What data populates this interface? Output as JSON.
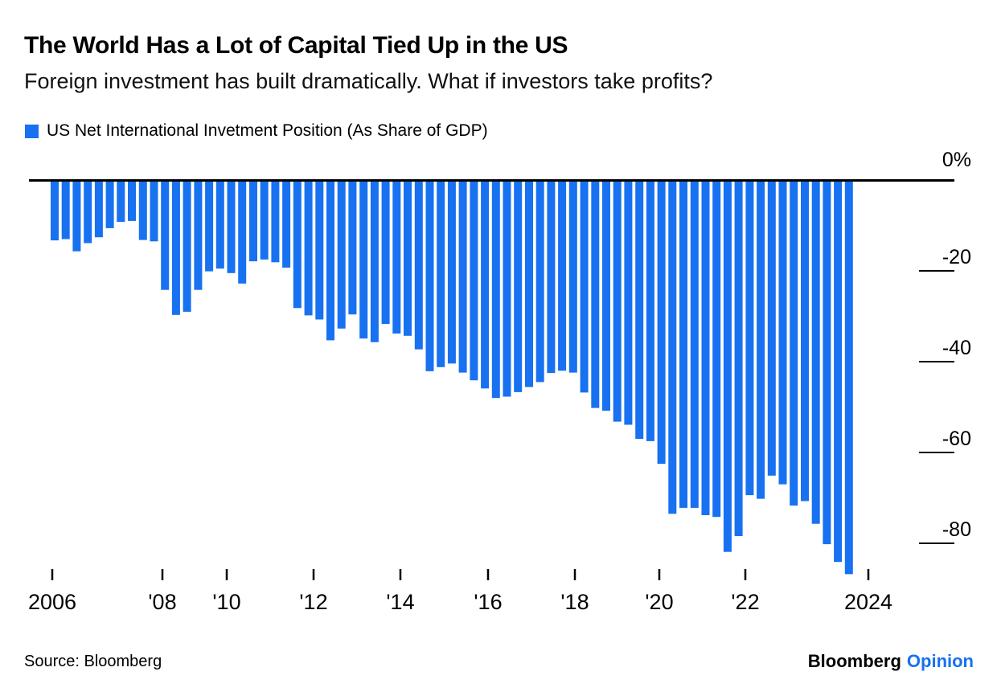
{
  "header": {
    "title": "The World Has a Lot of Capital Tied Up in the US",
    "subtitle": "Foreign investment has built dramatically. What if investors take profits?"
  },
  "legend": {
    "label": "US Net International Invetment Position (As Share of GDP)"
  },
  "colors": {
    "bar_blue": "#1771F1",
    "axis_black": "#000000",
    "brand_opinion_blue": "#1771F1"
  },
  "chart_data": {
    "type": "bar",
    "title": "US Net International Invetment Position (As Share of GDP)",
    "unit": "percent of GDP",
    "x_start": "2006 Q1",
    "x_end": "2024 Q1",
    "frequency": "quarterly",
    "points": 73,
    "values": [
      -13.3,
      -13.0,
      -15.7,
      -13.9,
      -12.6,
      -10.6,
      -9.2,
      -9.0,
      -13.2,
      -13.5,
      -24.2,
      -29.7,
      -29.0,
      -24.2,
      -20.1,
      -19.5,
      -20.5,
      -22.8,
      -17.9,
      -17.5,
      -18.1,
      -19.3,
      -28.2,
      -29.8,
      -30.7,
      -35.3,
      -32.7,
      -29.6,
      -34.9,
      -35.7,
      -31.7,
      -33.8,
      -34.3,
      -37.3,
      -42.1,
      -41.2,
      -40.4,
      -42.4,
      -44.1,
      -45.9,
      -48.0,
      -47.7,
      -46.7,
      -45.6,
      -44.5,
      -42.5,
      -42.0,
      -42.4,
      -46.8,
      -50.2,
      -50.8,
      -53.2,
      -53.9,
      -57.0,
      -57.5,
      -62.5,
      -73.5,
      -72.2,
      -72.2,
      -73.8,
      -74.2,
      -81.9,
      -78.4,
      -69.4,
      -70.2,
      -65.1,
      -67.0,
      -71.7,
      -70.7,
      -75.7,
      -80.2,
      -84.1,
      -86.8
    ],
    "x_tick_labels": [
      "2006",
      "'08",
      "'10",
      "'12",
      "'14",
      "'16",
      "'18",
      "'20",
      "'22",
      "2024"
    ],
    "y_tick_labels": [
      "0%",
      "-20",
      "-40",
      "-60",
      "-80"
    ],
    "y_ticks": [
      0,
      -20,
      -40,
      -60,
      -80
    ],
    "ylim": [
      -90,
      0
    ],
    "grid": false,
    "legend_position": "top-left",
    "bar_color": "#1771F1"
  },
  "footer": {
    "source": "Source: Bloomberg",
    "brand_main": "Bloomberg",
    "brand_suffix": "Opinion"
  }
}
